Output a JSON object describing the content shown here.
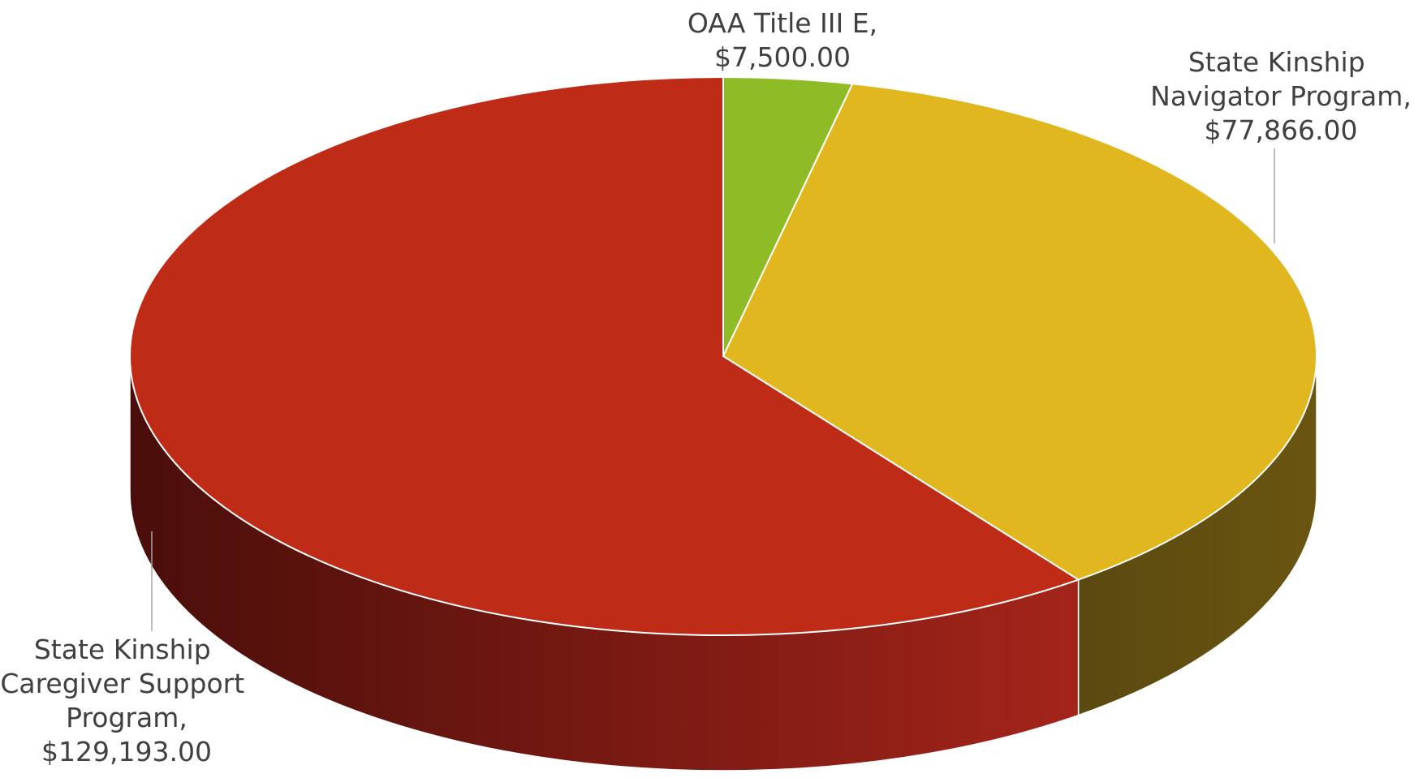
{
  "chart_data": {
    "type": "pie3d",
    "categories": [
      "OAA Title III E,",
      "State Kinship Navigator Program,",
      "State Kinship Caregiver Support Program,"
    ],
    "values": [
      7500,
      77866,
      129193
    ],
    "value_labels": [
      "$7,500.00",
      "$77,866.00",
      "$129,193.00"
    ],
    "colors": [
      "#8fbc26",
      "#e0b71e",
      "#be2c17"
    ],
    "side_colors": [
      [
        "#5a7a14",
        "#3f560d"
      ],
      [
        "#6a5510",
        "#5a4910"
      ],
      [
        "#a3241a",
        "#4a0e0a"
      ]
    ]
  }
}
